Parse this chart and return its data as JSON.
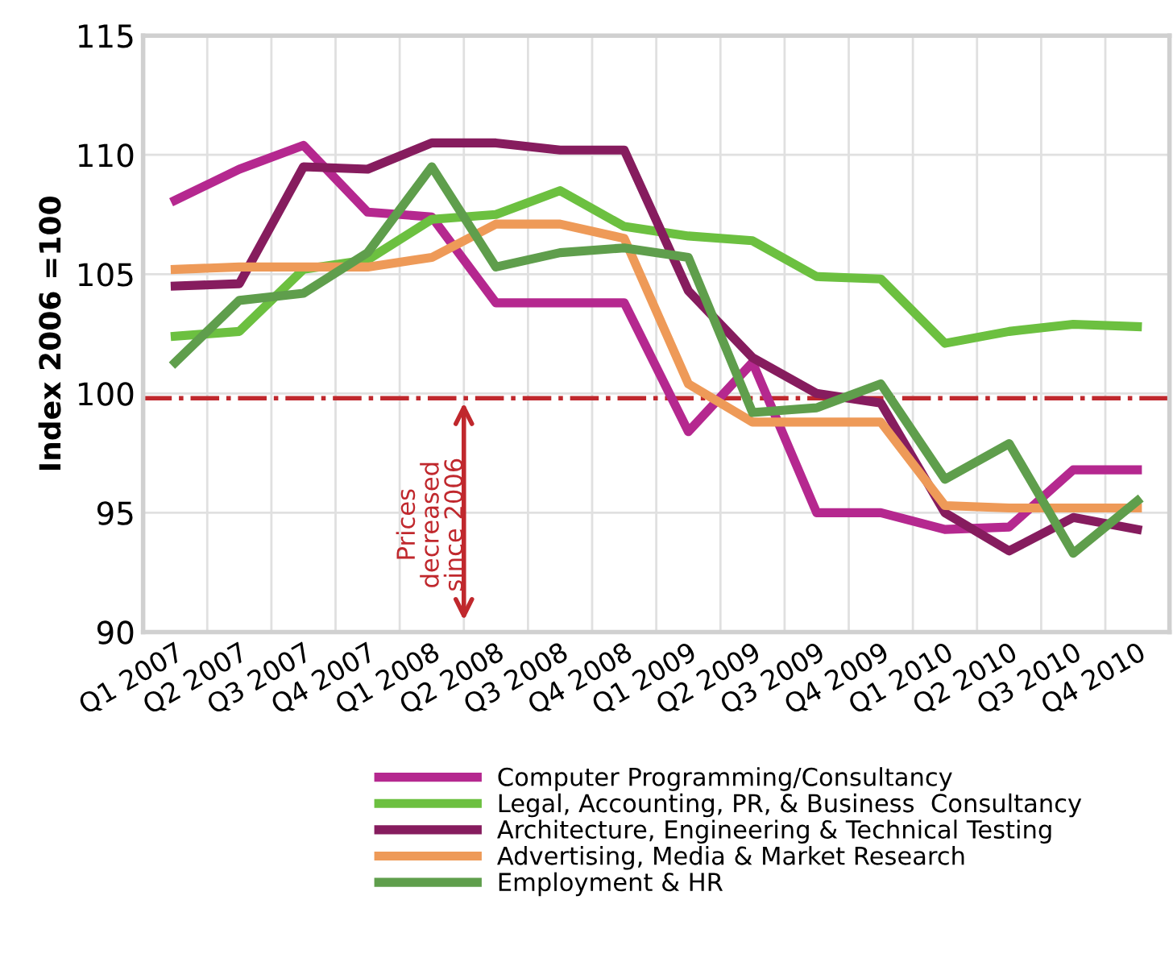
{
  "chart_data": {
    "type": "line",
    "ylabel": "Index 2006 =100",
    "categories": [
      "Q1 2007",
      "Q2 2007",
      "Q3 2007",
      "Q4 2007",
      "Q1 2008",
      "Q2 2008",
      "Q3 2008",
      "Q4 2008",
      "Q1 2009",
      "Q2 2009",
      "Q3 2009",
      "Q4 2009",
      "Q1 2010",
      "Q2 2010",
      "Q3 2010",
      "Q4 2010"
    ],
    "series": [
      {
        "name": "Computer Programming/Consultancy",
        "color": "#b5288f",
        "values": [
          108.1,
          109.4,
          110.4,
          107.6,
          107.4,
          103.8,
          103.8,
          103.8,
          98.4,
          101.3,
          95.0,
          95.0,
          94.3,
          94.4,
          96.8,
          96.8
        ]
      },
      {
        "name": "Legal, Accounting, PR, & Business  Consultancy",
        "color": "#6cc040",
        "values": [
          102.4,
          102.6,
          105.2,
          105.6,
          107.3,
          107.5,
          108.5,
          107.0,
          106.6,
          106.4,
          104.9,
          104.8,
          102.1,
          102.6,
          102.9,
          102.8
        ]
      },
      {
        "name": "Architecture, Engineering & Technical Testing",
        "color": "#861c5e",
        "values": [
          104.5,
          104.6,
          109.5,
          109.4,
          110.5,
          110.5,
          110.2,
          110.2,
          104.3,
          101.5,
          100.0,
          99.6,
          95.0,
          93.4,
          94.8,
          94.3
        ]
      },
      {
        "name": "Advertising, Media & Market Research",
        "color": "#ee9a58",
        "values": [
          105.2,
          105.3,
          105.3,
          105.3,
          105.7,
          107.1,
          107.1,
          106.5,
          100.4,
          98.8,
          98.8,
          98.8,
          95.3,
          95.2,
          95.2,
          95.2
        ]
      },
      {
        "name": "Employment & HR",
        "color": "#5f9e4c",
        "values": [
          101.3,
          103.9,
          104.2,
          105.9,
          109.5,
          105.3,
          105.9,
          106.1,
          105.7,
          99.2,
          99.4,
          100.4,
          96.4,
          97.9,
          93.3,
          95.5
        ]
      }
    ],
    "ylim": [
      90,
      115
    ],
    "yticks": [
      90,
      95,
      100,
      105,
      110,
      115
    ],
    "ref_lines": [
      {
        "axis": "y",
        "value": 99.8,
        "color": "#c0282d",
        "line_style": "dashdot"
      }
    ],
    "annotations": [
      "Prices\ndecreased\nsince 2006"
    ],
    "grid": true,
    "legend": "bottom",
    "line_style": "solid",
    "marker": "none"
  }
}
